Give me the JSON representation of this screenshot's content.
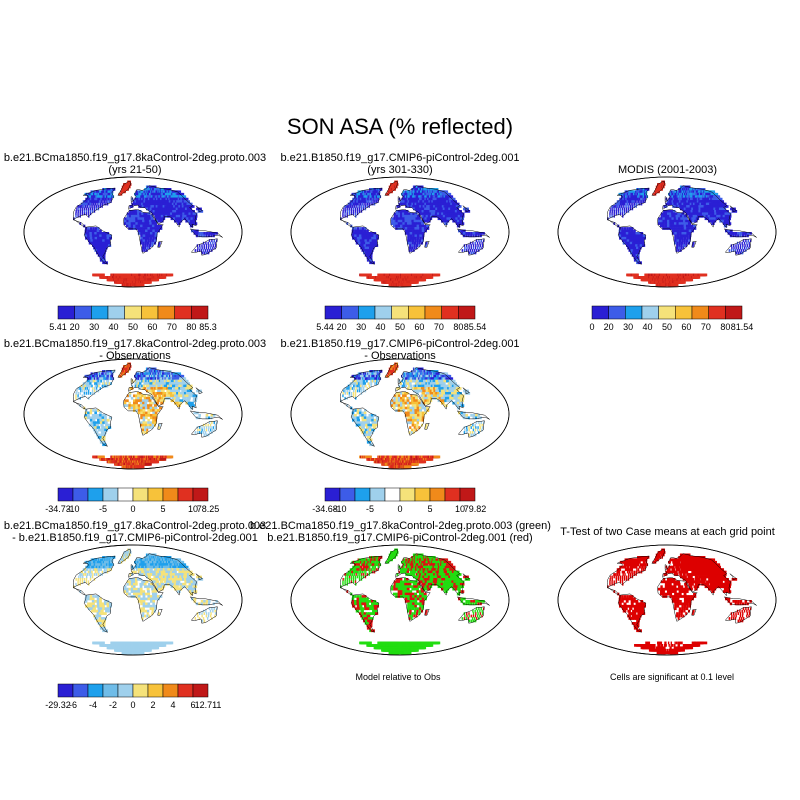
{
  "title": "SON ASA (% reflected)",
  "panels": [
    {
      "id": "p1",
      "title1": "b.e21.BCma1850.f19_g17.8kaControl-2deg.proto.003",
      "title2": "(yrs 21-50)",
      "style": "abs",
      "colorbar": {
        "labels": [
          "5.41",
          "20",
          "30",
          "40",
          "50",
          "60",
          "70",
          "80",
          "85.3"
        ],
        "colors": [
          "#2a1fd4",
          "#3d5ce8",
          "#1ea0ec",
          "#9fd0ec",
          "#f5e27a",
          "#f7c23a",
          "#f08a1a",
          "#e03020",
          "#c01818"
        ]
      }
    },
    {
      "id": "p2",
      "title1": "b.e21.B1850.f19_g17.CMIP6-piControl-2deg.001",
      "title2": "(yrs 301-330)",
      "style": "abs",
      "colorbar": {
        "labels": [
          "5.44",
          "20",
          "30",
          "40",
          "50",
          "60",
          "70",
          "80",
          "85.54"
        ],
        "colors": [
          "#2a1fd4",
          "#3d5ce8",
          "#1ea0ec",
          "#9fd0ec",
          "#f5e27a",
          "#f7c23a",
          "#f08a1a",
          "#e03020",
          "#c01818"
        ]
      }
    },
    {
      "id": "p3",
      "title1": "MODIS (2001-2003)",
      "title2": "",
      "style": "abs",
      "colorbar": {
        "labels": [
          "0",
          "20",
          "30",
          "40",
          "50",
          "60",
          "70",
          "80",
          "81.54"
        ],
        "colors": [
          "#2a1fd4",
          "#3d5ce8",
          "#1ea0ec",
          "#9fd0ec",
          "#f5e27a",
          "#f7c23a",
          "#f08a1a",
          "#e03020",
          "#c01818"
        ]
      }
    },
    {
      "id": "p4",
      "title1": "b.e21.BCma1850.f19_g17.8kaControl-2deg.proto.003",
      "title2": "- Observations",
      "style": "diff",
      "colorbar": {
        "labels": [
          "-34.73",
          "-10",
          "-5",
          "0",
          "5",
          "10",
          "78.25"
        ],
        "colors": [
          "#2a1fd4",
          "#3d5ce8",
          "#1ea0ec",
          "#9fd0ec",
          "#ffffff",
          "#f5e27a",
          "#f7c23a",
          "#f08a1a",
          "#e03020",
          "#c01818"
        ]
      }
    },
    {
      "id": "p5",
      "title1": "b.e21.B1850.f19_g17.CMIP6-piControl-2deg.001",
      "title2": "- Observations",
      "style": "diff",
      "colorbar": {
        "labels": [
          "-34.68",
          "-10",
          "-5",
          "0",
          "5",
          "10",
          "79.82"
        ],
        "colors": [
          "#2a1fd4",
          "#3d5ce8",
          "#1ea0ec",
          "#9fd0ec",
          "#ffffff",
          "#f5e27a",
          "#f7c23a",
          "#f08a1a",
          "#e03020",
          "#c01818"
        ]
      }
    },
    {
      "id": "p7",
      "title1": "b.e21.BCma1850.f19_g17.8kaControl-2deg.proto.003",
      "title2": "- b.e21.B1850.f19_g17.CMIP6-piControl-2deg.001",
      "style": "casediff",
      "colorbar": {
        "labels": [
          "-29.32",
          "-6",
          "-4",
          "-2",
          "0",
          "2",
          "4",
          "6",
          "12.711"
        ],
        "colors": [
          "#2a1fd4",
          "#3d5ce8",
          "#1ea0ec",
          "#6fbce8",
          "#9fd0ec",
          "#f5e27a",
          "#f7c23a",
          "#f08a1a",
          "#e03020",
          "#c01818"
        ]
      }
    },
    {
      "id": "p8",
      "title1": "b.e21.BCma1850.f19_g17.8kaControl-2deg.proto.003 (green)",
      "title2": "b.e21.B1850.f19_g17.CMIP6-piControl-2deg.001 (red)",
      "style": "rg",
      "caption": "Model relative to Obs"
    },
    {
      "id": "p9",
      "title1": "T-Test of two Case means at each grid point",
      "title2": "",
      "style": "ttest",
      "caption": "Cells are significant at 0.1 level"
    }
  ],
  "chart_data": {
    "type": "heatmap",
    "title": "SON ASA (% reflected)",
    "maps": [
      {
        "name": "b.e21.BCma1850.f19_g17.8kaControl-2deg.proto.003 (yrs 21-50)",
        "range": [
          5.41,
          85.3
        ],
        "levels": [
          20,
          30,
          40,
          50,
          60,
          70,
          80
        ]
      },
      {
        "name": "b.e21.B1850.f19_g17.CMIP6-piControl-2deg.001 (yrs 301-330)",
        "range": [
          5.44,
          85.54
        ],
        "levels": [
          20,
          30,
          40,
          50,
          60,
          70,
          80
        ]
      },
      {
        "name": "MODIS (2001-2003)",
        "range": [
          0,
          81.54
        ],
        "levels": [
          20,
          30,
          40,
          50,
          60,
          70,
          80
        ]
      },
      {
        "name": "b.e21.BCma1850.f19_g17.8kaControl-2deg.proto.003 - Observations",
        "range": [
          -34.73,
          78.25
        ],
        "levels": [
          -10,
          -5,
          0,
          5,
          10
        ]
      },
      {
        "name": "b.e21.B1850.f19_g17.CMIP6-piControl-2deg.001 - Observations",
        "range": [
          -34.68,
          79.82
        ],
        "levels": [
          -10,
          -5,
          0,
          5,
          10
        ]
      },
      {
        "name": "b.e21.BCma1850.f19_g17.8kaControl-2deg.proto.003 - b.e21.B1850.f19_g17.CMIP6-piControl-2deg.001",
        "range": [
          -29.32,
          12.711
        ],
        "levels": [
          -6,
          -4,
          -2,
          0,
          2,
          4,
          6
        ]
      }
    ]
  }
}
